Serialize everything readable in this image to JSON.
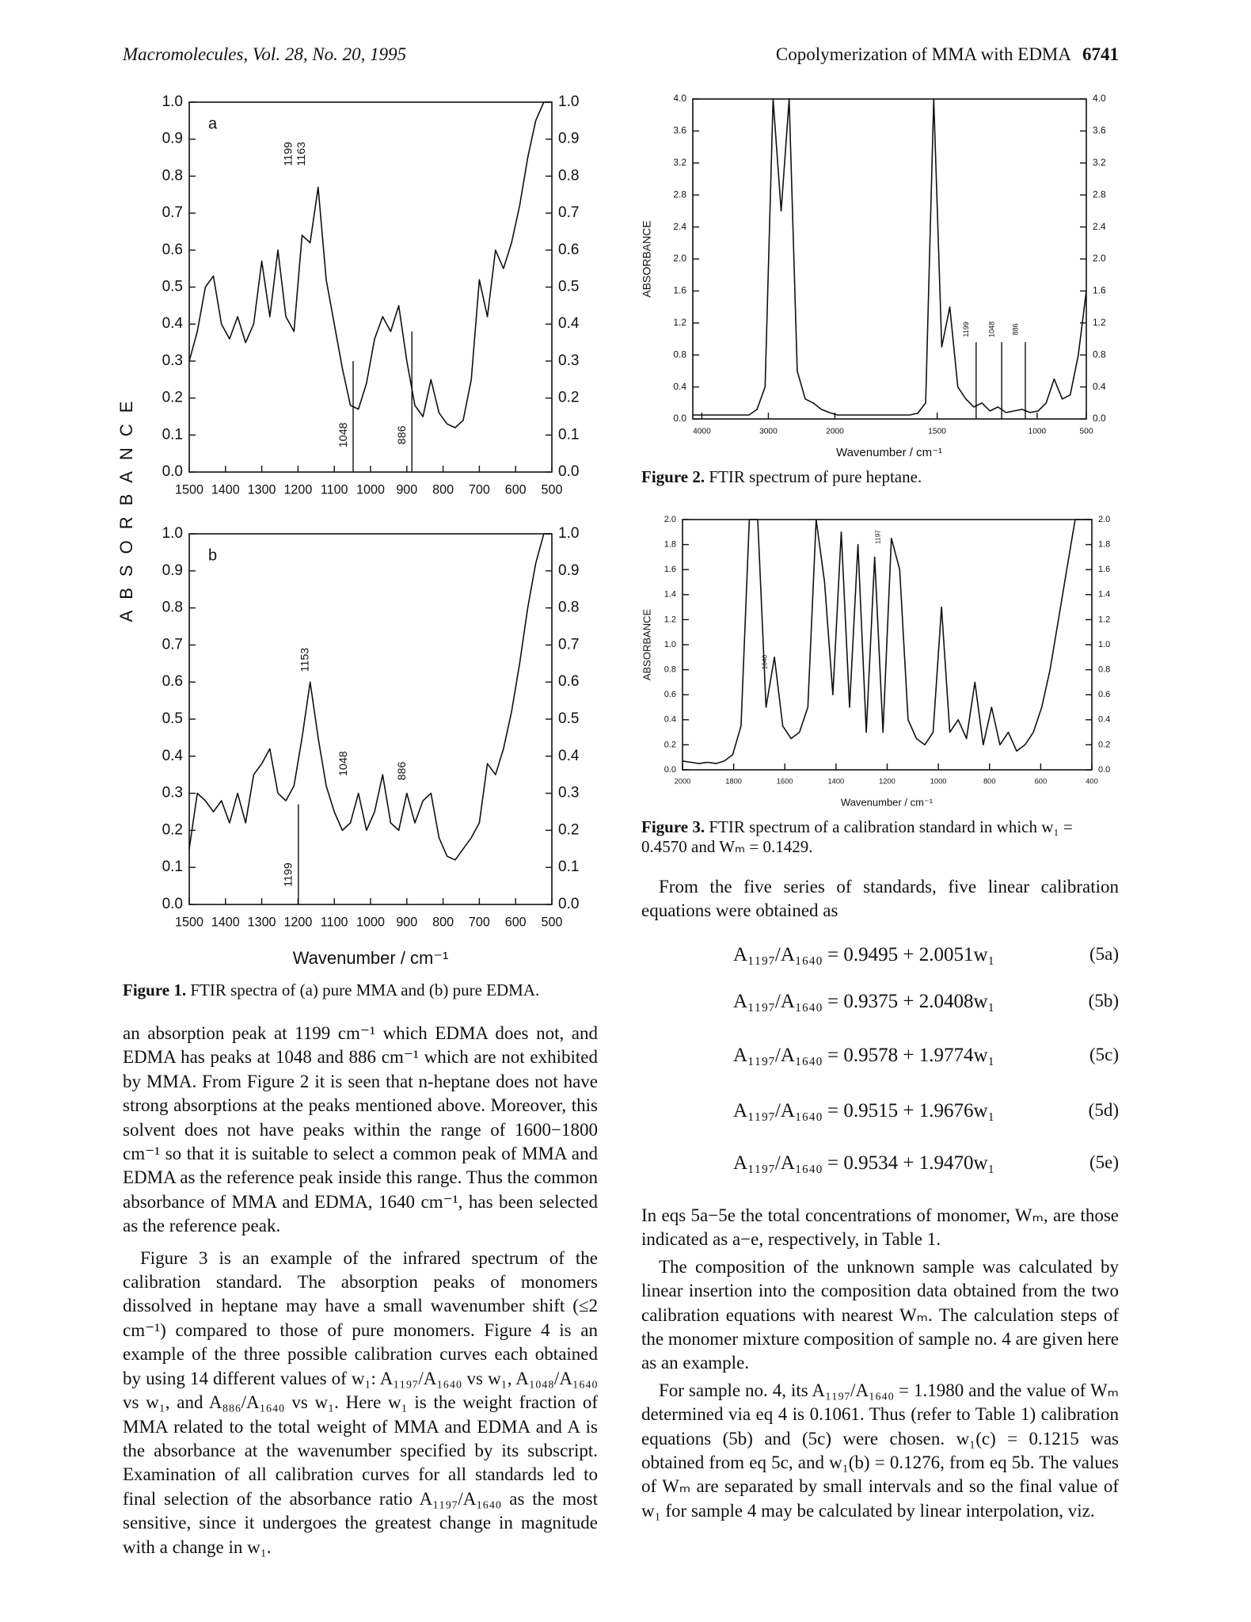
{
  "header": {
    "journal": "Macromolecules, Vol. 28, No. 20, 1995",
    "running_title": "Copolymerization of MMA with EDMA",
    "page_number": "6741"
  },
  "figure_1": {
    "y_axis_label": "ABSORBANCE",
    "x_axis_label": "Wavenumber / cm⁻¹",
    "panels": [
      {
        "label": "a",
        "ylim": [
          0,
          1
        ],
        "yticks": [
          {
            "value": 0,
            "label": "0.0"
          },
          {
            "value": 0.1,
            "label": "0.1"
          },
          {
            "value": 0.2,
            "label": "0.2"
          },
          {
            "value": 0.3,
            "label": "0.3"
          },
          {
            "value": 0.4,
            "label": "0.4"
          },
          {
            "value": 0.5,
            "label": "0.5"
          },
          {
            "value": 0.6,
            "label": "0.6"
          },
          {
            "value": 0.7,
            "label": "0.7"
          },
          {
            "value": 0.8,
            "label": "0.8"
          },
          {
            "value": 0.9,
            "label": "0.9"
          },
          {
            "value": 1,
            "label": "1.0"
          }
        ],
        "xticks": [
          1500,
          1400,
          1300,
          1200,
          1100,
          1000,
          900,
          800,
          700,
          600,
          500
        ],
        "spectrum": [
          0.3,
          0.38,
          0.5,
          0.53,
          0.4,
          0.36,
          0.42,
          0.35,
          0.4,
          0.57,
          0.42,
          0.6,
          0.42,
          0.38,
          0.64,
          0.62,
          0.77,
          0.52,
          0.4,
          0.28,
          0.18,
          0.17,
          0.24,
          0.36,
          0.42,
          0.38,
          0.45,
          0.3,
          0.18,
          0.15,
          0.25,
          0.16,
          0.13,
          0.12,
          0.14,
          0.25,
          0.52,
          0.42,
          0.6,
          0.55,
          0.62,
          0.72,
          0.85,
          0.95,
          1.0,
          1.0
        ],
        "peak_labels": [
          1199,
          1163,
          1048,
          886
        ]
      },
      {
        "label": "b",
        "ylim": [
          0,
          1
        ],
        "yticks": [
          {
            "value": 0,
            "label": "0.0"
          },
          {
            "value": 0.1,
            "label": "0.1"
          },
          {
            "value": 0.2,
            "label": "0.2"
          },
          {
            "value": 0.3,
            "label": "0.3"
          },
          {
            "value": 0.4,
            "label": "0.4"
          },
          {
            "value": 0.5,
            "label": "0.5"
          },
          {
            "value": 0.6,
            "label": "0.6"
          },
          {
            "value": 0.7,
            "label": "0.7"
          },
          {
            "value": 0.8,
            "label": "0.8"
          },
          {
            "value": 0.9,
            "label": "0.9"
          },
          {
            "value": 1,
            "label": "1.0"
          }
        ],
        "xticks": [
          1500,
          1400,
          1300,
          1200,
          1100,
          1000,
          900,
          800,
          700,
          600,
          500
        ],
        "spectrum": [
          0.15,
          0.3,
          0.28,
          0.25,
          0.28,
          0.22,
          0.3,
          0.22,
          0.35,
          0.38,
          0.42,
          0.3,
          0.28,
          0.32,
          0.45,
          0.6,
          0.45,
          0.32,
          0.25,
          0.2,
          0.22,
          0.3,
          0.2,
          0.25,
          0.35,
          0.22,
          0.2,
          0.3,
          0.22,
          0.28,
          0.3,
          0.18,
          0.13,
          0.12,
          0.15,
          0.18,
          0.22,
          0.38,
          0.35,
          0.42,
          0.52,
          0.65,
          0.8,
          0.92,
          1.0,
          1.0
        ],
        "peak_labels": [
          1153,
          1048,
          886,
          1199
        ]
      }
    ],
    "caption": {
      "label": "Figure 1.",
      "text": "FTIR spectra of (a) pure MMA and (b) pure EDMA."
    }
  },
  "figure_2": {
    "y_axis_label": "ABSORBANCE",
    "x_axis_label": "Wavenumber / cm⁻¹",
    "ylim": [
      0,
      4
    ],
    "yticks": [
      {
        "value": 0,
        "label": "0.0"
      },
      {
        "value": 0.4,
        "label": "0.4"
      },
      {
        "value": 0.8,
        "label": "0.8"
      },
      {
        "value": 1.2,
        "label": "1.2"
      },
      {
        "value": 1.6,
        "label": "1.6"
      },
      {
        "value": 2,
        "label": "2.0"
      },
      {
        "value": 2.4,
        "label": "2.4"
      },
      {
        "value": 2.8,
        "label": "2.8"
      },
      {
        "value": 3.2,
        "label": "3.2"
      },
      {
        "value": 3.6,
        "label": "3.6"
      },
      {
        "value": 4,
        "label": "4.0"
      }
    ],
    "xticks": [
      4000,
      3000,
      2000,
      1500,
      1000,
      500
    ],
    "spectrum": [
      0.05,
      0.05,
      0.05,
      0.05,
      0.05,
      0.05,
      0.05,
      0.05,
      0.12,
      0.4,
      4.0,
      2.6,
      4.0,
      0.6,
      0.25,
      0.2,
      0.12,
      0.08,
      0.05,
      0.05,
      0.05,
      0.05,
      0.05,
      0.05,
      0.05,
      0.05,
      0.05,
      0.05,
      0.07,
      0.2,
      4.0,
      0.9,
      1.4,
      0.4,
      0.25,
      0.15,
      0.2,
      0.1,
      0.15,
      0.08,
      0.1,
      0.12,
      0.08,
      0.1,
      0.2,
      0.5,
      0.25,
      0.3,
      0.8,
      1.6
    ],
    "peak_labels": [
      1199,
      1048,
      886
    ],
    "caption": {
      "label": "Figure 2.",
      "text": "FTIR spectrum of pure heptane."
    }
  },
  "figure_3": {
    "y_axis_label": "ABSORBANCE",
    "x_axis_label": "Wavenumber / cm⁻¹",
    "ylim": [
      0,
      2
    ],
    "yticks": [
      {
        "value": 0,
        "label": "0.0"
      },
      {
        "value": 0.2,
        "label": "0.2"
      },
      {
        "value": 0.4,
        "label": "0.4"
      },
      {
        "value": 0.6,
        "label": "0.6"
      },
      {
        "value": 0.8,
        "label": "0.8"
      },
      {
        "value": 1,
        "label": "1.0"
      },
      {
        "value": 1.2,
        "label": "1.2"
      },
      {
        "value": 1.4,
        "label": "1.4"
      },
      {
        "value": 1.6,
        "label": "1.6"
      },
      {
        "value": 1.8,
        "label": "1.8"
      },
      {
        "value": 2,
        "label": "2.0"
      }
    ],
    "xticks": [
      2000,
      1800,
      1600,
      1400,
      1200,
      1000,
      800,
      600,
      400
    ],
    "spectrum": [
      0.07,
      0.06,
      0.05,
      0.06,
      0.05,
      0.07,
      0.12,
      0.35,
      2.0,
      2.0,
      0.5,
      0.9,
      0.35,
      0.25,
      0.3,
      0.5,
      2.0,
      1.5,
      0.6,
      1.9,
      0.5,
      1.8,
      0.3,
      1.7,
      0.3,
      1.85,
      1.6,
      0.4,
      0.25,
      0.2,
      0.3,
      1.3,
      0.3,
      0.4,
      0.25,
      0.7,
      0.2,
      0.5,
      0.2,
      0.3,
      0.15,
      0.2,
      0.3,
      0.5,
      0.8,
      1.2,
      1.6,
      2.0,
      2.0,
      2.0
    ],
    "peak_labels": [
      1640,
      1197
    ],
    "caption": {
      "label": "Figure 3.",
      "text": "FTIR spectrum of a calibration standard in which w₁ = 0.4570 and Wₘ = 0.1429."
    }
  },
  "body": {
    "left_paragraphs": [
      "an absorption peak at 1199 cm⁻¹ which EDMA does not, and EDMA has peaks at 1048 and 886 cm⁻¹ which are not exhibited by MMA. From Figure 2 it is seen that n-heptane does not have strong absorptions at the peaks mentioned above. Moreover, this solvent does not have peaks within the range of 1600−1800 cm⁻¹ so that it is suitable to select a common peak of MMA and EDMA as the reference peak inside this range. Thus the common absorbance of MMA and EDMA, 1640 cm⁻¹, has been selected as the reference peak.",
      "Figure 3 is an example of the infrared spectrum of the calibration standard. The absorption peaks of monomers dissolved in heptane may have a small wavenumber shift (≤2 cm⁻¹) compared to those of pure monomers. Figure 4 is an example of the three possible calibration curves each obtained by using 14 different values of w₁: A₁₁₉₇/A₁₆₄₀ vs w₁, A₁₀₄₈/A₁₆₄₀ vs w₁, and A₈₈₆/A₁₆₄₀ vs w₁. Here w₁ is the weight fraction of MMA related to the total weight of MMA and EDMA and A is the absorbance at the wavenumber specified by its subscript. Examination of all calibration curves for all standards led to final selection of the absorbance ratio A₁₁₉₇/A₁₆₄₀ as the most sensitive, since it undergoes the greatest change in magnitude with a change in w₁."
    ],
    "right_intro": "From the five series of standards, five linear calibration equations were obtained as",
    "equations": [
      {
        "expression": "A₁₁₉₇/A₁₆₄₀ = 0.9495 + 2.0051w₁",
        "number": "(5a)"
      },
      {
        "expression": "A₁₁₉₇/A₁₆₄₀ = 0.9375 + 2.0408w₁",
        "number": "(5b)"
      },
      {
        "expression": "A₁₁₉₇/A₁₆₄₀ = 0.9578 + 1.9774w₁",
        "number": "(5c)"
      },
      {
        "expression": "A₁₁₉₇/A₁₆₄₀ = 0.9515 + 1.9676w₁",
        "number": "(5d)"
      },
      {
        "expression": "A₁₁₉₇/A₁₆₄₀ = 0.9534 + 1.9470w₁",
        "number": "(5e)"
      }
    ],
    "right_paragraphs": [
      "In eqs 5a−5e the total concentrations of monomer, Wₘ, are those indicated as a−e, respectively, in Table 1.",
      "The composition of the unknown sample was calculated by linear insertion into the composition data obtained from the two calibration equations with nearest Wₘ. The calculation steps of the monomer mixture composition of sample no. 4 are given here as an example.",
      "For sample no. 4, its A₁₁₉₇/A₁₆₄₀ = 1.1980 and the value of Wₘ determined via eq 4 is 0.1061. Thus (refer to Table 1) calibration equations (5b) and (5c) were chosen. w₁(c) = 0.1215 was obtained from eq 5c, and w₁(b) = 0.1276, from eq 5b. The values of Wₘ are separated by small intervals and so the final value of w₁ for sample 4 may be calculated by linear interpolation, viz."
    ]
  }
}
